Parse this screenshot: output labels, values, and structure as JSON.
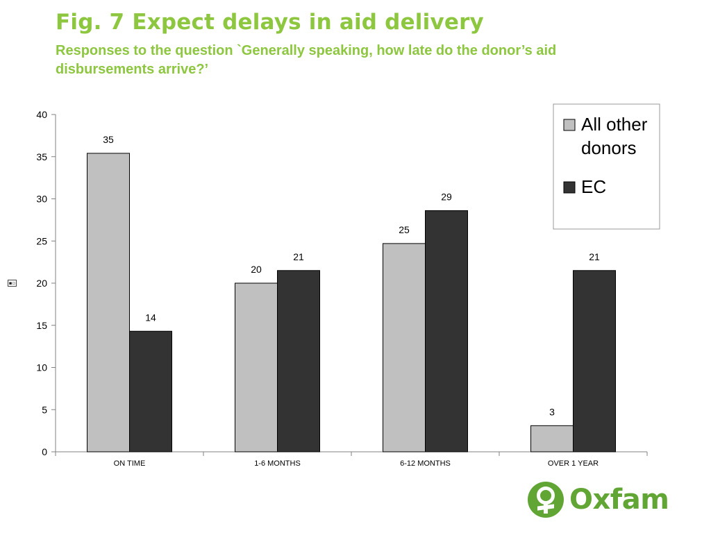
{
  "header": {
    "title": "Fig. 7 Expect delays in aid delivery",
    "subtitle": "Responses to the question `Generally speaking, how late do the donor’s aid disbursements arrive?’"
  },
  "colors": {
    "title": "#8dc63f",
    "all_other_donors": "#c0c0c0",
    "ec": "#333333",
    "brand": "#61a534"
  },
  "corner_icon": "small-chart-object-icon",
  "chart_data": {
    "type": "bar",
    "categories": [
      "ON TIME",
      "1-6 MONTHS",
      "6-12 MONTHS",
      "OVER 1 YEAR"
    ],
    "series": [
      {
        "name": "All other donors",
        "values": [
          35.4,
          20.0,
          24.7,
          3.1
        ],
        "labels": [
          "35",
          "20",
          "25",
          "3"
        ],
        "color": "#c0c0c0"
      },
      {
        "name": "EC",
        "values": [
          14.3,
          21.5,
          28.6,
          21.5
        ],
        "labels": [
          "14",
          "21",
          "29",
          "21"
        ],
        "color": "#333333"
      }
    ],
    "yticks": [
      0,
      5,
      10,
      15,
      20,
      25,
      30,
      35,
      40
    ],
    "ylim": [
      0,
      40
    ],
    "grid": false,
    "legend_position": "top-right"
  },
  "logo": {
    "text": "Oxfam"
  }
}
